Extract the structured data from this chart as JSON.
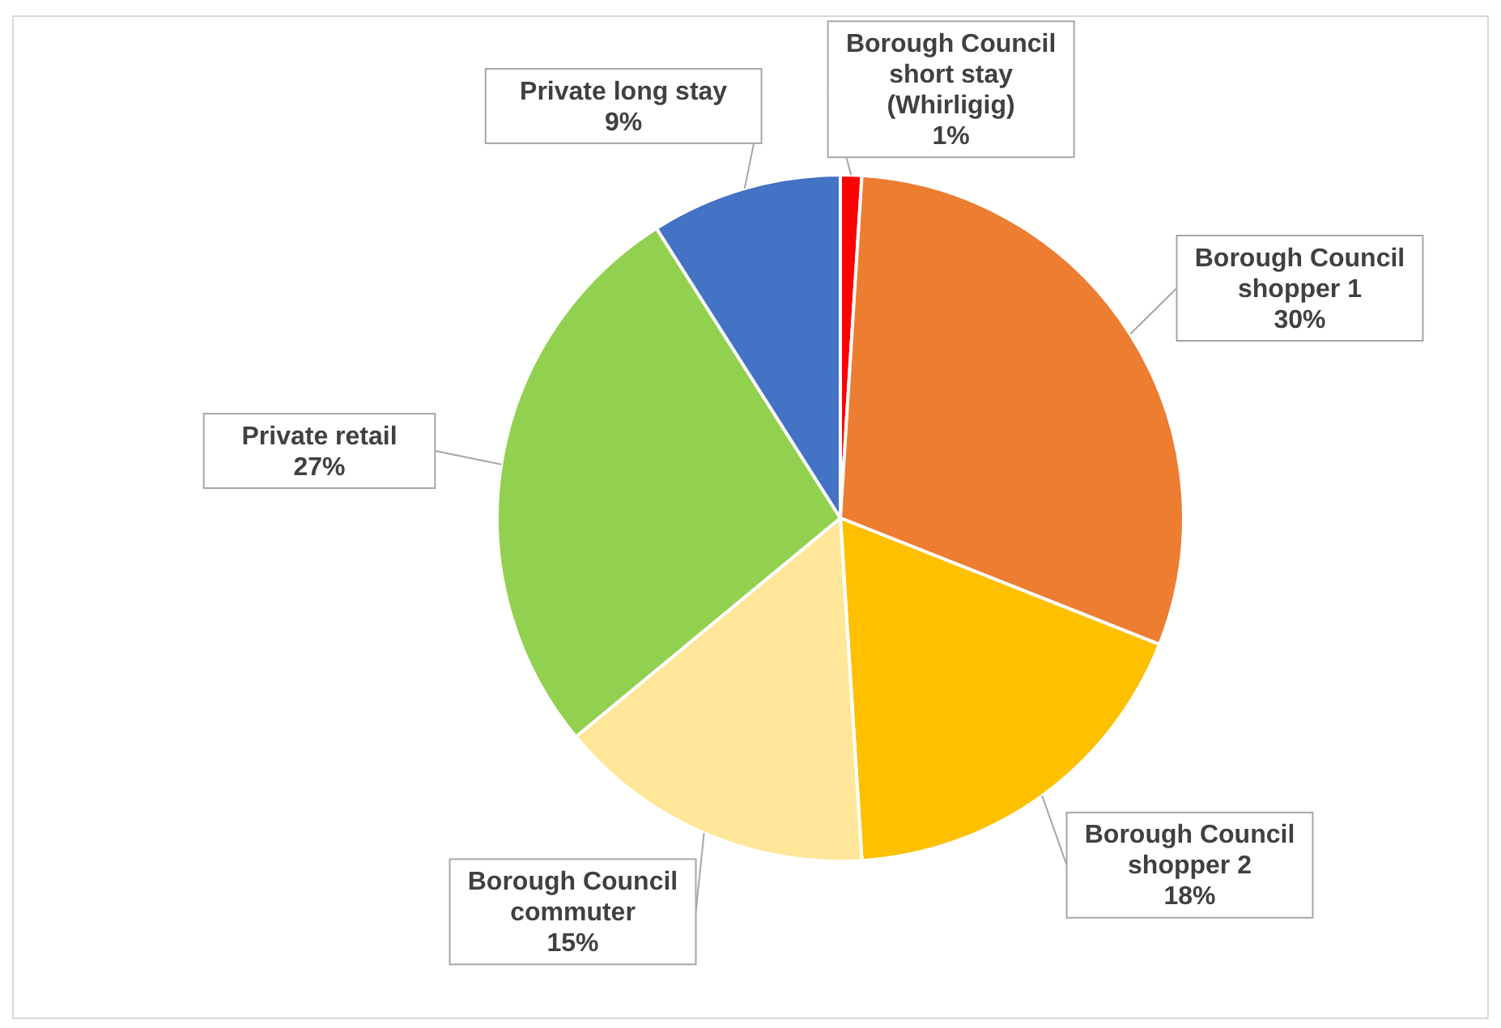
{
  "chart_data": {
    "type": "pie",
    "categories": [
      "Borough Council short stay (Whirligig)",
      "Borough Council shopper 1",
      "Borough Council shopper 2",
      "Borough Council commuter",
      "Private retail",
      "Private long stay"
    ],
    "values": [
      1,
      30,
      18,
      15,
      27,
      9
    ],
    "colors": [
      "#ff0000",
      "#ed7d31",
      "#ffc000",
      "#ffe699",
      "#92d050",
      "#4472c4"
    ],
    "value_labels": [
      "1%",
      "30%",
      "18%",
      "15%",
      "27%",
      "9%"
    ]
  }
}
